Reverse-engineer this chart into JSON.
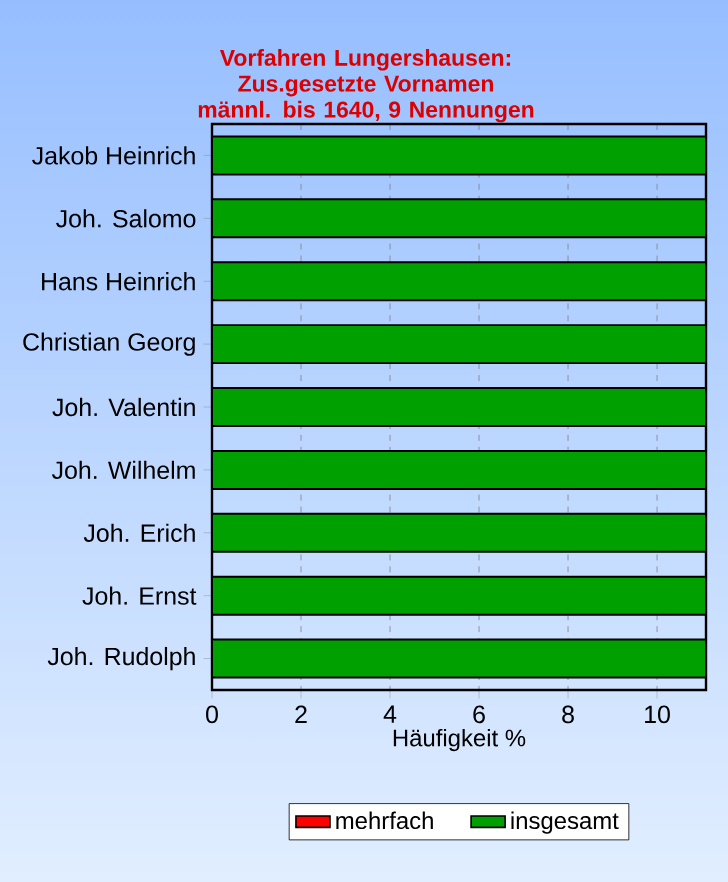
{
  "chart_data": {
    "type": "bar",
    "orientation": "horizontal",
    "title": "Vorfahren Lungershausen: Zus.gesetzte Vornamen männl. bis 1640, 9 Nennungen",
    "xlabel": "Häufigkeit %",
    "categories": [
      "Jakob Heinrich",
      "Joh. Salomo",
      "Hans Heinrich",
      "Christian Georg",
      "Joh. Valentin",
      "Joh. Wilhelm",
      "Joh. Erich",
      "Joh. Ernst",
      "Joh. Rudolph"
    ],
    "series": [
      {
        "name": "mehrfach",
        "color": "#ff0000",
        "values": [
          0,
          0,
          0,
          0,
          0,
          0,
          0,
          0,
          0
        ]
      },
      {
        "name": "insgesamt",
        "color": "#00a000",
        "values": [
          11.1,
          11.1,
          11.1,
          11.1,
          11.1,
          11.1,
          11.1,
          11.1,
          11.1
        ]
      }
    ],
    "xlim": [
      0,
      11.1
    ],
    "xticks": [
      0,
      2,
      4,
      6,
      8,
      10
    ],
    "grid": "x",
    "legend": "bottom"
  }
}
